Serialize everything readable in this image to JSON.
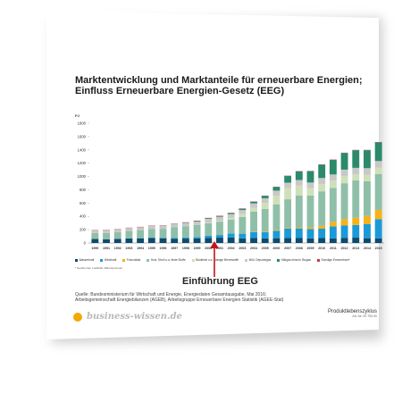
{
  "document": {
    "title_line1": "Marktentwicklung und Marktanteile für erneuerbare Energien;",
    "title_line2": "Einfluss Erneuerbare Energien-Gesetz (EEG)",
    "annotation": "Einführung EEG",
    "footnote": "* Geothermie, Laufkraft, Wärmepumpen",
    "source_line1": "Quelle: Bundesministerium für Wirtschaft und Energie, Energiedaten Gesamtausgabe, Mai 2016;",
    "source_line2": "Arbeitsgemeinschaft Energiebilanzen (AGEB), Arbeitsgruppe Erneuerbare Energien Statistik (AGEE-Stat)",
    "brand": "business-wissen.de",
    "doc_title": "Produktlebenszyklus",
    "doc_number": "Art.-Nr. 00 753.00",
    "accent_color": "#f2a900"
  },
  "chart_data": {
    "type": "bar",
    "stacked": true,
    "y_unit": "PJ",
    "ylim": [
      0,
      1800
    ],
    "yticks": [
      0,
      200,
      400,
      600,
      800,
      1000,
      1200,
      1400,
      1600,
      1800
    ],
    "grid": false,
    "legend_position": "bottom",
    "categories": [
      "1990",
      "1991",
      "1992",
      "1993",
      "1994",
      "1995",
      "1996",
      "1997",
      "1998",
      "1999",
      "2000",
      "2001",
      "2002",
      "2003",
      "2004",
      "2005",
      "2006",
      "2007",
      "2008",
      "2009",
      "2010",
      "2011",
      "2012",
      "2013",
      "2014",
      "2015"
    ],
    "series": [
      {
        "name": "Wasserkraft",
        "color": "#0d4a6e",
        "values": [
          60,
          55,
          62,
          68,
          70,
          75,
          72,
          65,
          66,
          70,
          78,
          80,
          82,
          70,
          75,
          70,
          72,
          75,
          74,
          70,
          75,
          68,
          78,
          80,
          72,
          68
        ]
      },
      {
        "name": "Windkraft",
        "color": "#1a9bd7",
        "values": [
          0,
          0,
          1,
          2,
          3,
          5,
          6,
          10,
          16,
          20,
          30,
          40,
          60,
          70,
          90,
          95,
          110,
          140,
          145,
          140,
          140,
          180,
          185,
          190,
          210,
          290
        ]
      },
      {
        "name": "Fotovoltaik",
        "color": "#f5b21b",
        "values": [
          0,
          0,
          0,
          0,
          0,
          0,
          0,
          0,
          0,
          0,
          0,
          1,
          2,
          3,
          5,
          8,
          10,
          12,
          16,
          24,
          42,
          70,
          95,
          110,
          125,
          140
        ]
      },
      {
        "name": "Holz, Stroh u.a. feste Stoffe",
        "color": "#8fbfa8",
        "values": [
          90,
          95,
          100,
          110,
          120,
          130,
          135,
          160,
          170,
          180,
          190,
          200,
          210,
          250,
          300,
          340,
          390,
          430,
          480,
          480,
          520,
          510,
          540,
          560,
          520,
          540
        ]
      },
      {
        "name": "Biodiesel u.a. flüssige Brennstoffe",
        "color": "#cfe0b8",
        "values": [
          0,
          0,
          0,
          0,
          0,
          0,
          0,
          0,
          0,
          0,
          10,
          15,
          20,
          40,
          60,
          90,
          130,
          170,
          150,
          110,
          110,
          110,
          110,
          95,
          100,
          95
        ]
      },
      {
        "name": "Müll, Deponiegas",
        "color": "#c8c8c8",
        "values": [
          40,
          42,
          42,
          45,
          45,
          48,
          48,
          50,
          50,
          52,
          55,
          58,
          60,
          62,
          65,
          70,
          75,
          80,
          82,
          85,
          90,
          92,
          95,
          95,
          98,
          100
        ]
      },
      {
        "name": "Klärgas einschl. Biogas",
        "color": "#2a8a6a",
        "values": [
          0,
          0,
          0,
          0,
          0,
          0,
          0,
          2,
          5,
          8,
          10,
          12,
          15,
          20,
          25,
          35,
          55,
          100,
          130,
          170,
          200,
          220,
          250,
          265,
          270,
          280
        ]
      },
      {
        "name": "Sonstige Erneuerbare*",
        "color": "#c43a4a",
        "values": [
          5,
          5,
          5,
          5,
          5,
          5,
          5,
          5,
          5,
          5,
          5,
          5,
          5,
          5,
          5,
          5,
          5,
          5,
          5,
          5,
          5,
          5,
          5,
          5,
          5,
          5
        ]
      }
    ]
  }
}
